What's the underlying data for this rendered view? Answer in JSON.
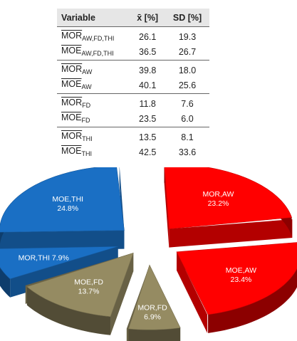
{
  "table": {
    "headers": [
      "Variable",
      "x̄ [%]",
      "SD [%]"
    ],
    "groups": [
      [
        {
          "base": "MOR",
          "sub": "AW,FD,THI",
          "mean": "26.1",
          "sd": "19.3"
        },
        {
          "base": "MOE",
          "sub": "AW,FD,THI",
          "mean": "36.5",
          "sd": "26.7"
        }
      ],
      [
        {
          "base": "MOR",
          "sub": "AW",
          "mean": "39.8",
          "sd": "18.0"
        },
        {
          "base": "MOE",
          "sub": "AW",
          "mean": "40.1",
          "sd": "25.6"
        }
      ],
      [
        {
          "base": "MOR",
          "sub": "FD",
          "mean": "11.8",
          "sd": "7.6"
        },
        {
          "base": "MOE",
          "sub": "FD",
          "mean": "23.5",
          "sd": "6.0"
        }
      ],
      [
        {
          "base": "MOR",
          "sub": "THI",
          "mean": "13.5",
          "sd": "8.1"
        },
        {
          "base": "MOE",
          "sub": "THI",
          "mean": "42.5",
          "sd": "33.6"
        }
      ]
    ]
  },
  "chart_data": {
    "type": "pie",
    "title": "",
    "slices": [
      {
        "name": "MOR,AW",
        "value": 23.2,
        "value_label": "23.2%",
        "color": "#ff0000"
      },
      {
        "name": "MOE,AW",
        "value": 23.4,
        "value_label": "23.4%",
        "color": "#ff0000"
      },
      {
        "name": "MOR,FD",
        "value": 6.9,
        "value_label": "6.9%",
        "color": "#958b62"
      },
      {
        "name": "MOE,FD",
        "value": 13.7,
        "value_label": "13.7%",
        "color": "#958b62"
      },
      {
        "name": "MOR,THI",
        "value": 7.9,
        "value_label": "7.9%",
        "color": "#1a6fc4"
      },
      {
        "name": "MOE,THI",
        "value": 24.8,
        "value_label": "24.8%",
        "color": "#1a6fc4"
      }
    ],
    "style": "3d-exploded"
  }
}
